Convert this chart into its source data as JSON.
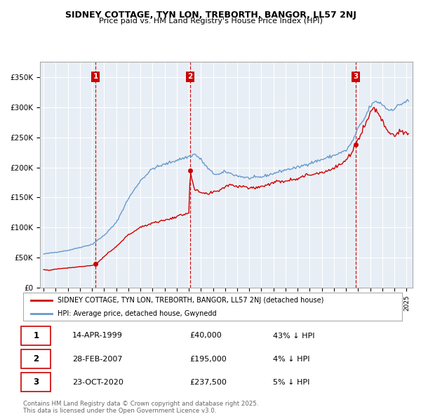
{
  "title": "SIDNEY COTTAGE, TYN LON, TREBORTH, BANGOR, LL57 2NJ",
  "subtitle": "Price paid vs. HM Land Registry's House Price Index (HPI)",
  "legend_property": "SIDNEY COTTAGE, TYN LON, TREBORTH, BANGOR, LL57 2NJ (detached house)",
  "legend_hpi": "HPI: Average price, detached house, Gwynedd",
  "sale_points": [
    {
      "label": "1",
      "date_num": 1999.28,
      "price": 40000
    },
    {
      "label": "2",
      "date_num": 2007.12,
      "price": 195000
    },
    {
      "label": "3",
      "date_num": 2020.81,
      "price": 237500
    }
  ],
  "property_color": "#cc0000",
  "hpi_color": "#6699cc",
  "vline_color": "#cc0000",
  "chart_bg_color": "#e8eef5",
  "background_color": "#ffffff",
  "grid_color": "#ffffff",
  "ylim": [
    0,
    375000
  ],
  "yticks": [
    0,
    50000,
    100000,
    150000,
    200000,
    250000,
    300000,
    350000
  ],
  "ytick_labels": [
    "£0",
    "£50K",
    "£100K",
    "£150K",
    "£200K",
    "£250K",
    "£300K",
    "£350K"
  ],
  "xlim_start": 1994.7,
  "xlim_end": 2025.5,
  "footer_text": "Contains HM Land Registry data © Crown copyright and database right 2025.\nThis data is licensed under the Open Government Licence v3.0.",
  "table_rows": [
    [
      "1",
      "14-APR-1999",
      "£40,000",
      "43% ↓ HPI"
    ],
    [
      "2",
      "28-FEB-2007",
      "£195,000",
      "4% ↓ HPI"
    ],
    [
      "3",
      "23-OCT-2020",
      "£237,500",
      "5% ↓ HPI"
    ]
  ]
}
